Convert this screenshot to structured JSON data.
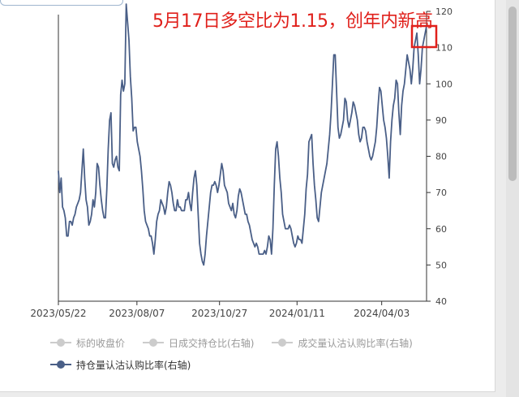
{
  "annotation": "5月17日多空比为1.15，创年内新高",
  "legend": {
    "items": [
      {
        "label": "标的收盘价",
        "active": false
      },
      {
        "label": "日成交持仓比(右轴)",
        "active": false
      },
      {
        "label": "成交量认沽认购比率(右轴)",
        "active": false
      },
      {
        "label": "持仓量认沽认购比率(右轴)",
        "active": true
      }
    ],
    "inactive_color": "#cccccc",
    "active_color": "#4a5f87"
  },
  "chart_data": {
    "type": "line",
    "x_ticks": [
      "2023/05/22",
      "2023/08/07",
      "2023/10/27",
      "2024/01/11",
      "2024/04/03"
    ],
    "x_range": [
      "2023/05/22",
      "2024/05/17"
    ],
    "y_right_ticks": [
      40,
      50,
      60,
      70,
      80,
      90,
      100,
      110,
      120
    ],
    "ylim": [
      40,
      120
    ],
    "grid": false,
    "legend_position": "bottom",
    "series": [
      {
        "name": "持仓量认沽认购比率(右轴)",
        "color": "#4a5f87",
        "values": [
          76,
          70,
          74,
          66,
          65,
          63,
          58,
          58,
          62,
          62,
          61,
          63,
          64,
          66,
          67,
          68,
          70,
          76,
          82,
          74,
          68,
          66,
          61,
          62,
          64,
          68,
          66,
          70,
          78,
          77,
          72,
          68,
          65,
          63,
          63,
          71,
          82,
          90,
          92,
          78,
          77,
          79,
          80,
          77,
          76,
          97,
          101,
          98,
          100,
          122,
          117,
          112,
          102,
          96,
          87,
          88,
          88,
          84,
          82,
          80,
          76,
          71,
          65,
          62,
          61,
          60,
          58,
          58,
          56,
          53,
          57,
          62,
          64,
          65,
          68,
          67,
          66,
          64,
          66,
          70,
          73,
          72,
          70,
          67,
          65,
          65,
          68,
          66,
          66,
          65,
          65,
          65,
          68,
          68,
          70,
          67,
          65,
          70,
          74,
          76,
          72,
          64,
          56,
          53,
          51,
          50,
          53,
          58,
          62,
          66,
          70,
          72,
          72,
          73,
          72,
          70,
          72,
          75,
          78,
          76,
          72,
          71,
          70,
          67,
          66,
          65,
          67,
          64,
          63,
          65,
          69,
          71,
          70,
          68,
          66,
          64,
          64,
          62,
          61,
          59,
          57,
          56,
          55,
          56,
          55,
          53,
          53,
          53,
          53,
          54,
          53,
          55,
          58,
          57,
          53,
          60,
          72,
          82,
          84,
          80,
          74,
          70,
          64,
          62,
          60,
          60,
          60,
          61,
          60,
          58,
          56,
          55,
          56,
          58,
          57,
          57,
          56,
          60,
          64,
          71,
          75,
          84,
          85,
          86,
          78,
          72,
          68,
          63,
          62,
          66,
          70,
          72,
          74,
          76,
          78,
          82,
          86,
          92,
          100,
          108,
          108,
          98,
          88,
          85,
          86,
          88,
          90,
          96,
          95,
          90,
          88,
          90,
          92,
          95,
          94,
          92,
          90,
          86,
          84,
          85,
          88,
          88,
          87,
          84,
          82,
          80,
          79,
          80,
          82,
          84,
          88,
          94,
          99,
          98,
          94,
          90,
          88,
          85,
          80,
          74,
          84,
          90,
          94,
          96,
          101,
          100,
          92,
          86,
          94,
          98,
          100,
          104,
          108,
          106,
          104,
          100,
          104,
          110,
          112,
          114,
          108,
          100,
          104,
          110,
          112,
          114,
          116
        ]
      }
    ]
  }
}
